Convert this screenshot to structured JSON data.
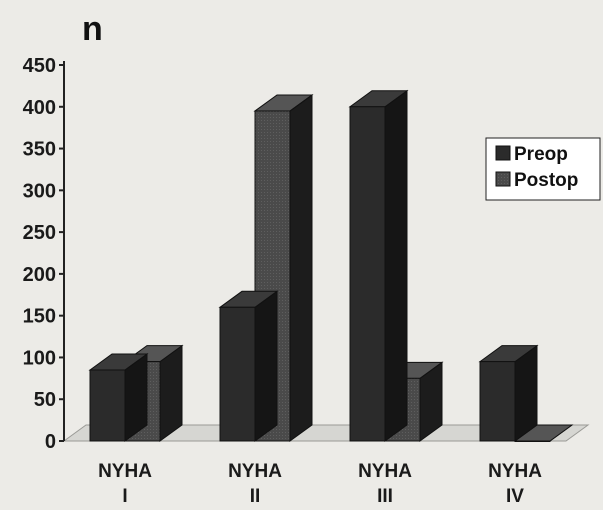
{
  "chart_data": {
    "type": "bar",
    "ylabel": "n",
    "categories": [
      [
        "NYHA",
        "I"
      ],
      [
        "NYHA",
        "II"
      ],
      [
        "NYHA",
        "III"
      ],
      [
        "NYHA",
        "IV"
      ]
    ],
    "series": [
      {
        "name": "Preop",
        "values": [
          85,
          160,
          400,
          95
        ],
        "color": "#2b2b2b"
      },
      {
        "name": "Postop",
        "values": [
          95,
          395,
          75,
          0
        ],
        "color": "#4a4a4a"
      }
    ],
    "ylim": [
      0,
      450
    ],
    "yticks": [
      0,
      50,
      100,
      150,
      200,
      250,
      300,
      350,
      400,
      450
    ],
    "legend": "right",
    "grid": false,
    "style": "3d"
  }
}
